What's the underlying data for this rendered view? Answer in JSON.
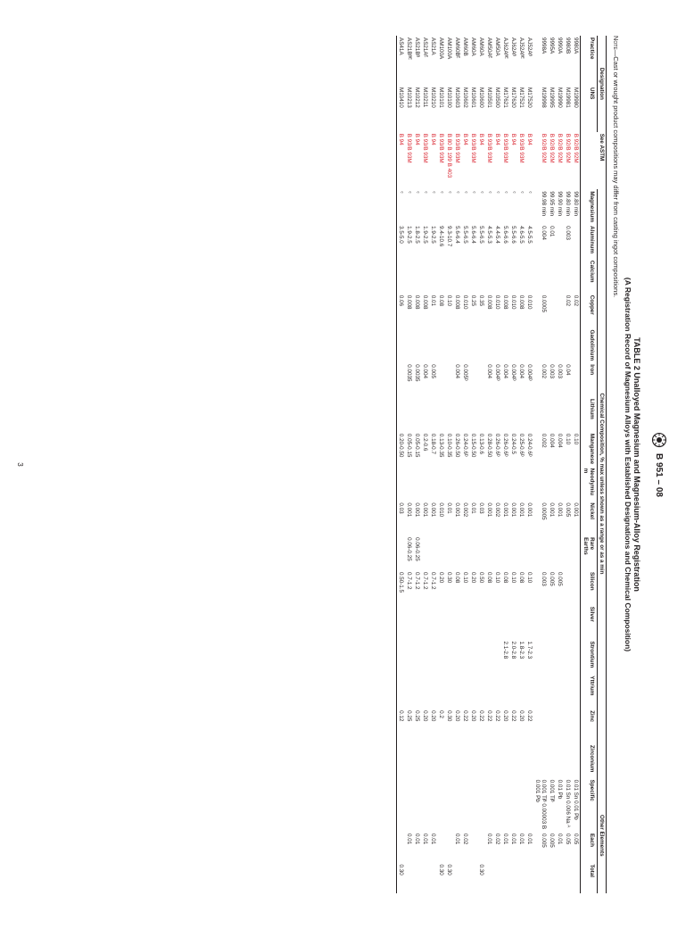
{
  "doc_code": "B 951 – 08",
  "title": "TABLE 2 Unalloyed Magnesium and Magnesium-Alloy Registration",
  "subtitle": "(A Registration Record of Magnesium Alloys with Established Designations and Chemical Composition)",
  "note_label": "Note—",
  "note_text": "Cast or wrought product compositions may differ from casting ingot compositions.",
  "page_number": "3",
  "group_headers": {
    "designation": "Designation",
    "chemical": "Chemical Composition, % max unless shown as a range or as a min",
    "other": "Other Elements"
  },
  "columns": {
    "practice": "Practice",
    "uns": "UNS",
    "astm": "See ASTM",
    "mg": "Magnesium",
    "al": "Aluminum",
    "ca": "Calcium",
    "cu": "Copper",
    "gd": "Gadolinium",
    "fe": "Iron",
    "li": "Lithium",
    "mn": "Manganese",
    "nd": "Neodymium",
    "ni": "Nickel",
    "re": "Rare Earths",
    "si": "Silicon",
    "ag": "Silver",
    "sr": "Strontium",
    "y": "Yttrium",
    "zn": "Zinc",
    "zr": "Zirconium",
    "specific": "Specific",
    "each": "Each",
    "total": "Total"
  },
  "astm_link_color": "#d9232e",
  "rows": [
    {
      "practice": "9980A",
      "uns": "M19980",
      "astm": "B 92/B 92M",
      "mg": "99.80 min",
      "al": "",
      "ca": "",
      "cu": "0.02",
      "gd": "",
      "fe": "",
      "li": "",
      "mn": "0.10",
      "nd": "",
      "ni": "0.001",
      "re": "",
      "si": "",
      "ag": "",
      "sr": "",
      "y": "",
      "zn": "",
      "zr": "",
      "specific": "0.01 Sn 0.01 Pb",
      "each": "0.05",
      "total": ""
    },
    {
      "practice": "9980B",
      "uns": "M19981",
      "astm": "B 92/B 92M",
      "mg": "99.80 min",
      "al": "0.003",
      "ca": "",
      "cu": "0.02",
      "gd": "",
      "fe": "0.04",
      "li": "",
      "mn": "0.10",
      "nd": "",
      "ni": "0.005",
      "re": "",
      "si": "",
      "ag": "",
      "sr": "",
      "y": "",
      "zn": "",
      "zr": "",
      "specific": "0.01 Sn 0.006 Na ᴬ",
      "each": "0.05",
      "total": ""
    },
    {
      "practice": "9990A",
      "uns": "M19990",
      "astm": "B 92/B 92M",
      "mg": "99.90 min",
      "al": "",
      "ca": "",
      "cu": "",
      "gd": "",
      "fe": "0.003",
      "li": "",
      "mn": "0.004",
      "nd": "",
      "ni": "0.001",
      "re": "",
      "si": "0.005",
      "ag": "",
      "sr": "",
      "y": "",
      "zn": "",
      "zr": "",
      "specific": "0.01 Pb",
      "each": "0.01",
      "total": ""
    },
    {
      "practice": "9995A",
      "uns": "M19995",
      "astm": "B 92/B 92M",
      "mg": "99.95 min",
      "al": "0.01",
      "ca": "",
      "cu": "",
      "gd": "",
      "fe": "0.003",
      "li": "",
      "mn": "0.004",
      "nd": "",
      "ni": "0.001",
      "re": "",
      "si": "0.005",
      "ag": "",
      "sr": "",
      "y": "",
      "zn": "",
      "zr": "",
      "specific": "0.001 Tiᴮ",
      "each": "0.005",
      "total": ""
    },
    {
      "practice": "9998A",
      "uns": "M19998",
      "astm": "B 92/B 92M",
      "mg": "99.98 min",
      "al": "0.004",
      "ca": "",
      "cu": "0.0005",
      "gd": "",
      "fe": "0.002",
      "li": "",
      "mn": "0.002",
      "nd": "",
      "ni": "0.0005",
      "re": "",
      "si": "0.003",
      "ag": "",
      "sr": "",
      "y": "",
      "zn": "",
      "zr": "",
      "specific": "0.001 Tiᴮ 0.00003 B 0.001 Pb",
      "each": "0.005",
      "total": ""
    },
    {
      "practice": "AJ52Aᴮ",
      "uns": "M17520",
      "astm": "B 94",
      "mg": "ᶜ",
      "al": "4.5-5.5",
      "ca": "",
      "cu": "0.010",
      "gd": "",
      "fe": "0.004ᴰ",
      "li": "",
      "mn": "0.24-0.6ᴰ",
      "nd": "",
      "ni": "0.001",
      "re": "",
      "si": "0.10",
      "ag": "",
      "sr": "1.7-2.3",
      "y": "",
      "zn": "0.22",
      "zr": "",
      "specific": "",
      "each": "0.01",
      "total": ""
    },
    {
      "practice": "AJ52Aᴮᴱ",
      "uns": "M17521",
      "astm": "B 93/B 93M",
      "mg": "ᶜ",
      "al": "4.6-5.5",
      "ca": "",
      "cu": "0.008",
      "gd": "",
      "fe": "0.004",
      "li": "",
      "mn": "0.25-0.6ᴰ",
      "nd": "",
      "ni": "0.001",
      "re": "",
      "si": "0.08",
      "ag": "",
      "sr": "1.8-2.3",
      "y": "",
      "zn": "0.20",
      "zr": "",
      "specific": "",
      "each": "0.01",
      "total": ""
    },
    {
      "practice": "AJ62Aᴮ",
      "uns": "M17620",
      "astm": "B 94",
      "mg": "ᶜ",
      "al": "5.5-6.6",
      "ca": "",
      "cu": "0.010",
      "gd": "",
      "fe": "0.004ᴰ",
      "li": "",
      "mn": "0.24-0.5",
      "nd": "",
      "ni": "0.001",
      "re": "",
      "si": "0.10",
      "ag": "",
      "sr": "2.0-2.8",
      "y": "",
      "zn": "0.22",
      "zr": "",
      "specific": "",
      "each": "0.01",
      "total": ""
    },
    {
      "practice": "AJ62Aᴮᴱ",
      "uns": "M17621",
      "astm": "B 93/B 93M",
      "mg": "ᶜ",
      "al": "5.6-6.6",
      "ca": "",
      "cu": "0.008",
      "gd": "",
      "fe": "0.004",
      "li": "",
      "mn": "0.26-0.6ᴰ",
      "nd": "",
      "ni": "0.001",
      "re": "",
      "si": "0.08",
      "ag": "",
      "sr": "2.1-2.8",
      "y": "",
      "zn": "0.20",
      "zr": "",
      "specific": "",
      "each": "0.01",
      "total": ""
    },
    {
      "practice": "AM50A",
      "uns": "M10500",
      "astm": "B 94",
      "mg": "ᶜ",
      "al": "4.4-5.4",
      "ca": "",
      "cu": "0.010",
      "gd": "",
      "fe": "0.004ᴰ",
      "li": "",
      "mn": "0.26-0.6ᴰ",
      "nd": "",
      "ni": "0.002",
      "re": "",
      "si": "0.10",
      "ag": "",
      "sr": "",
      "y": "",
      "zn": "0.22",
      "zr": "",
      "specific": "",
      "each": "0.02",
      "total": ""
    },
    {
      "practice": "AM50Aᴱ",
      "uns": "M10501",
      "astm": "B 93/B 93M",
      "mg": "ᶜ",
      "al": "4.5-5.3",
      "ca": "",
      "cu": "0.008",
      "gd": "",
      "fe": "0.004",
      "li": "",
      "mn": "0.28-0.50",
      "nd": "",
      "ni": "0.001",
      "re": "",
      "si": "0.08",
      "ag": "",
      "sr": "",
      "y": "",
      "zn": "0.22",
      "zr": "",
      "specific": "",
      "each": "0.01",
      "total": ""
    },
    {
      "practice": "AM60A",
      "uns": "M10600",
      "astm": "B 94",
      "mg": "ᶜ",
      "al": "5.5-6.5",
      "ca": "",
      "cu": "0.35",
      "gd": "",
      "fe": "",
      "li": "",
      "mn": "0.13-0.6",
      "nd": "",
      "ni": "0.03",
      "re": "",
      "si": "0.50",
      "ag": "",
      "sr": "",
      "y": "",
      "zn": "0.22",
      "zr": "",
      "specific": "",
      "each": "",
      "total": "0.30"
    },
    {
      "practice": "AM60A",
      "uns": "M10601",
      "astm": "B 93/B 93M",
      "mg": "ᶜ",
      "al": "5.6-6.4",
      "ca": "",
      "cu": "0.25",
      "gd": "",
      "fe": "",
      "li": "",
      "mn": "0.15-0.50",
      "nd": "",
      "ni": "0.01",
      "re": "",
      "si": "0.20",
      "ag": "",
      "sr": "",
      "y": "",
      "zn": "0.20",
      "zr": "",
      "specific": "",
      "each": "",
      "total": ""
    },
    {
      "practice": "AM60B",
      "uns": "M10602",
      "astm": "B 94",
      "mg": "ᶜ",
      "al": "5.5-6.5",
      "ca": "",
      "cu": "0.010",
      "gd": "",
      "fe": "0.005ᴰ",
      "li": "",
      "mn": "0.24-0.6ᴰ",
      "nd": "",
      "ni": "0.002",
      "re": "",
      "si": "0.10",
      "ag": "",
      "sr": "",
      "y": "",
      "zn": "0.22",
      "zr": "",
      "specific": "",
      "each": "0.02",
      "total": ""
    },
    {
      "practice": "AM60Bᴱ",
      "uns": "M10603",
      "astm": "B 93/B 93M",
      "mg": "ᶜ",
      "al": "5.6-6.4",
      "ca": "",
      "cu": "0.008",
      "gd": "",
      "fe": "0.004",
      "li": "",
      "mn": "0.26-0.50",
      "nd": "",
      "ni": "0.001",
      "re": "",
      "si": "0.08",
      "ag": "",
      "sr": "",
      "y": "",
      "zn": "0.20",
      "zr": "",
      "specific": "",
      "each": "0.01",
      "total": ""
    },
    {
      "practice": "AM100A",
      "uns": "M10100",
      "astm": "B 80 B 199 B 403",
      "mg": "ᶜ",
      "al": "9.3-10.7",
      "ca": "",
      "cu": "0.10",
      "gd": "",
      "fe": "",
      "li": "",
      "mn": "0.10-0.35",
      "nd": "",
      "ni": "0.01",
      "re": "",
      "si": "0.30",
      "ag": "",
      "sr": "",
      "y": "",
      "zn": "0.30",
      "zr": "",
      "specific": "",
      "each": "",
      "total": "0.30"
    },
    {
      "practice": "AM100A",
      "uns": "M10101",
      "astm": "B 93/B 93M",
      "mg": "ᶜ",
      "al": "9.4-10.6",
      "ca": "",
      "cu": "0.08",
      "gd": "",
      "fe": "",
      "li": "",
      "mn": "0.13-0.35",
      "nd": "",
      "ni": "0.010",
      "re": "",
      "si": "0.20",
      "ag": "",
      "sr": "",
      "y": "",
      "zn": "0.2",
      "zr": "",
      "specific": "",
      "each": "",
      "total": "0.30"
    },
    {
      "practice": "AS21A",
      "uns": "M10210",
      "astm": "B 94",
      "mg": "ᶜ",
      "al": "1.9-2.5",
      "ca": "",
      "cu": "0.01",
      "gd": "",
      "fe": "0.005",
      "li": "",
      "mn": "0.18-0.7",
      "nd": "",
      "ni": "0.001",
      "re": "",
      "si": "0.7-1.2",
      "ag": "",
      "sr": "",
      "y": "",
      "zn": "0.20",
      "zr": "",
      "specific": "",
      "each": "0.01",
      "total": ""
    },
    {
      "practice": "AS21Aᴱ",
      "uns": "M10211",
      "astm": "B 93/B 93M",
      "mg": "ᶜ",
      "al": "1.9-2.5",
      "ca": "",
      "cu": "0.008",
      "gd": "",
      "fe": "0.004",
      "li": "",
      "mn": "0.2-0.6",
      "nd": "",
      "ni": "0.001",
      "re": "",
      "si": "0.7-1.2",
      "ag": "",
      "sr": "",
      "y": "",
      "zn": "0.20",
      "zr": "",
      "specific": "",
      "each": "0.01",
      "total": ""
    },
    {
      "practice": "AS21Bᴮ",
      "uns": "M10212",
      "astm": "B 94",
      "mg": "ᶜ",
      "al": "1.8-2.5",
      "ca": "",
      "cu": "0.008",
      "gd": "",
      "fe": "0.0035",
      "li": "",
      "mn": "0.05-0.15",
      "nd": "",
      "ni": "0.001",
      "re": "0.06-0.25",
      "si": "0.7-1.2",
      "ag": "",
      "sr": "",
      "y": "",
      "zn": "0.25",
      "zr": "",
      "specific": "",
      "each": "0.01",
      "total": ""
    },
    {
      "practice": "AS21Bᴮᴱ",
      "uns": "M10213",
      "astm": "B 93/B 93M",
      "mg": "ᶜ",
      "al": "1.9-2.5",
      "ca": "",
      "cu": "0.008",
      "gd": "",
      "fe": "0.0035",
      "li": "",
      "mn": "0.05-0.15",
      "nd": "",
      "ni": "0.001",
      "re": "0.06-0.25",
      "si": "0.7-1.2",
      "ag": "",
      "sr": "",
      "y": "",
      "zn": "0.25",
      "zr": "",
      "specific": "",
      "each": "0.01",
      "total": ""
    },
    {
      "practice": "AS41A",
      "uns": "M10410",
      "astm": "B 94",
      "mg": "ᶜ",
      "al": "3.5-5.0",
      "ca": "",
      "cu": "0.06",
      "gd": "",
      "fe": "",
      "li": "",
      "mn": "0.20-0.50",
      "nd": "",
      "ni": "0.03",
      "re": "",
      "si": "0.50-1.5",
      "ag": "",
      "sr": "",
      "y": "",
      "zn": "0.12",
      "zr": "",
      "specific": "",
      "each": "",
      "total": "0.30"
    }
  ]
}
